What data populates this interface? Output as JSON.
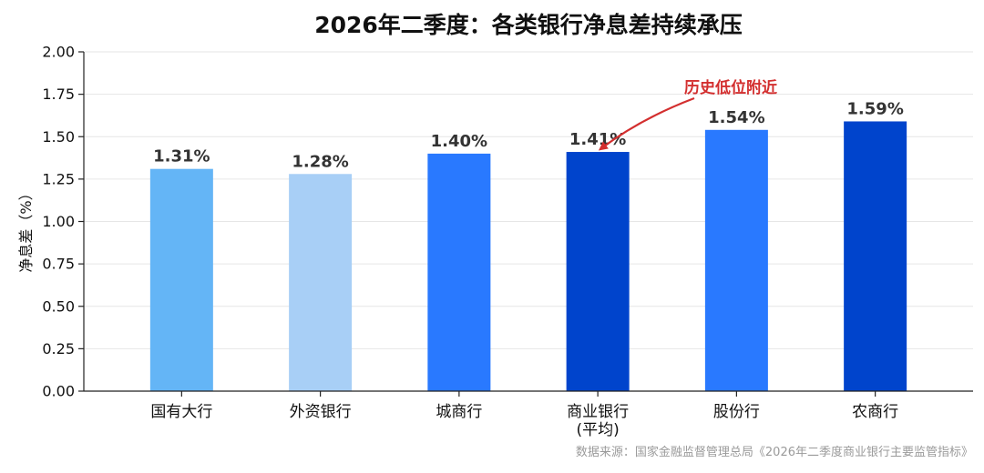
{
  "chart_data": {
    "type": "bar",
    "title": "2026年二季度：各类银行净息差持续承压",
    "ylabel": "净息差（%）",
    "xlabel": "",
    "ylim": [
      0,
      2.0
    ],
    "yticks": [
      "0.00",
      "0.25",
      "0.50",
      "0.75",
      "1.00",
      "1.25",
      "1.50",
      "1.75",
      "2.00"
    ],
    "grid": true,
    "categories": [
      [
        "国有大行"
      ],
      [
        "外资银行"
      ],
      [
        "城商行"
      ],
      [
        "商业银行",
        "(平均)"
      ],
      [
        "股份行"
      ],
      [
        "农商行"
      ]
    ],
    "values": [
      1.31,
      1.28,
      1.4,
      1.41,
      1.54,
      1.59
    ],
    "value_labels": [
      "1.31%",
      "1.28%",
      "1.40%",
      "1.41%",
      "1.54%",
      "1.59%"
    ],
    "colors": [
      "#64b5f6",
      "#a8cff6",
      "#2979ff",
      "#0044cc",
      "#2979ff",
      "#0044cc"
    ],
    "annotation": {
      "text": "历史低位附近",
      "target_index": 3,
      "color": "#d32f2f"
    },
    "source": "数据来源：国家金融监督管理总局《2026年二季度商业银行主要监管指标》"
  }
}
